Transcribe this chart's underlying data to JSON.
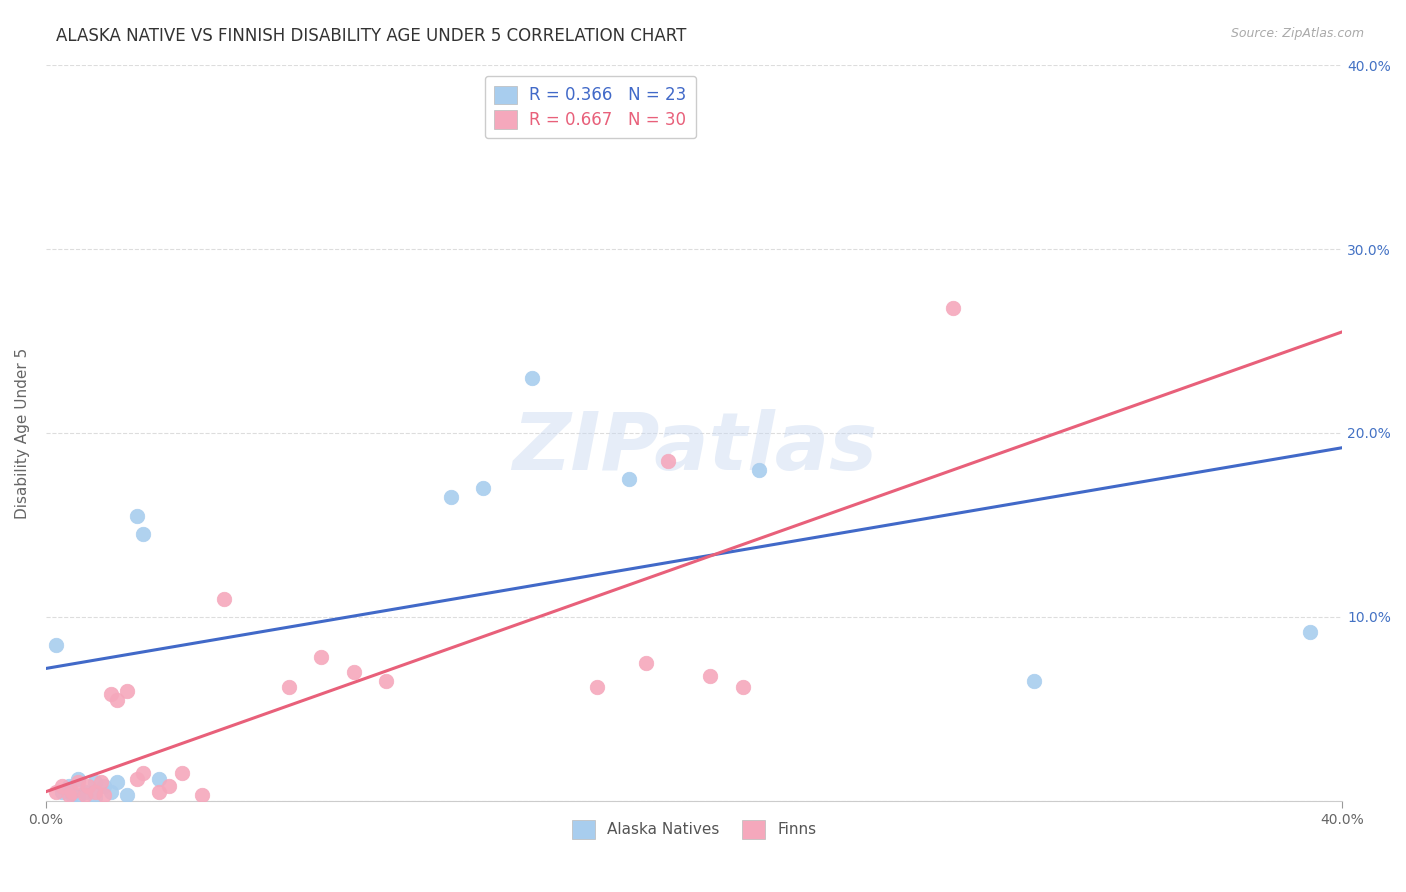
{
  "title": "ALASKA NATIVE VS FINNISH DISABILITY AGE UNDER 5 CORRELATION CHART",
  "source": "Source: ZipAtlas.com",
  "ylabel": "Disability Age Under 5",
  "watermark": "ZIPatlas",
  "legend_r_alaska": "R = 0.366",
  "legend_n_alaska": "N = 23",
  "legend_r_finn": "R = 0.667",
  "legend_n_finn": "N = 30",
  "legend_label_alaska": "Alaska Natives",
  "legend_label_finn": "Finns",
  "xmin": 0.0,
  "xmax": 0.4,
  "ymin": 0.0,
  "ymax": 0.4,
  "y_ticks": [
    0.0,
    0.1,
    0.2,
    0.3,
    0.4
  ],
  "y_tick_labels_right": [
    "",
    "10.0%",
    "20.0%",
    "30.0%",
    "40.0%"
  ],
  "alaska_color": "#A8CDEE",
  "alaska_edge": "#A8CDEE",
  "finn_color": "#F5A8BC",
  "finn_edge": "#F5A8BC",
  "line_alaska_color": "#4169C8",
  "line_finn_color": "#E8607A",
  "alaska_line_x": [
    0.0,
    0.4
  ],
  "alaska_line_y": [
    0.072,
    0.192
  ],
  "finn_line_x": [
    0.0,
    0.4
  ],
  "finn_line_y": [
    0.005,
    0.255
  ],
  "alaska_points": [
    [
      0.003,
      0.085
    ],
    [
      0.005,
      0.005
    ],
    [
      0.007,
      0.008
    ],
    [
      0.008,
      0.003
    ],
    [
      0.01,
      0.012
    ],
    [
      0.01,
      0.002
    ],
    [
      0.012,
      0.005
    ],
    [
      0.015,
      0.01
    ],
    [
      0.015,
      0.002
    ],
    [
      0.018,
      0.008
    ],
    [
      0.02,
      0.005
    ],
    [
      0.022,
      0.01
    ],
    [
      0.025,
      0.003
    ],
    [
      0.028,
      0.155
    ],
    [
      0.03,
      0.145
    ],
    [
      0.035,
      0.012
    ],
    [
      0.125,
      0.165
    ],
    [
      0.135,
      0.17
    ],
    [
      0.15,
      0.23
    ],
    [
      0.18,
      0.175
    ],
    [
      0.22,
      0.18
    ],
    [
      0.305,
      0.065
    ],
    [
      0.39,
      0.092
    ]
  ],
  "finn_points": [
    [
      0.003,
      0.005
    ],
    [
      0.005,
      0.008
    ],
    [
      0.007,
      0.003
    ],
    [
      0.008,
      0.005
    ],
    [
      0.01,
      0.01
    ],
    [
      0.012,
      0.003
    ],
    [
      0.013,
      0.008
    ],
    [
      0.015,
      0.005
    ],
    [
      0.017,
      0.01
    ],
    [
      0.018,
      0.003
    ],
    [
      0.02,
      0.058
    ],
    [
      0.022,
      0.055
    ],
    [
      0.025,
      0.06
    ],
    [
      0.028,
      0.012
    ],
    [
      0.03,
      0.015
    ],
    [
      0.035,
      0.005
    ],
    [
      0.038,
      0.008
    ],
    [
      0.042,
      0.015
    ],
    [
      0.048,
      0.003
    ],
    [
      0.055,
      0.11
    ],
    [
      0.075,
      0.062
    ],
    [
      0.085,
      0.078
    ],
    [
      0.095,
      0.07
    ],
    [
      0.105,
      0.065
    ],
    [
      0.17,
      0.062
    ],
    [
      0.185,
      0.075
    ],
    [
      0.192,
      0.185
    ],
    [
      0.205,
      0.068
    ],
    [
      0.215,
      0.062
    ],
    [
      0.28,
      0.268
    ]
  ],
  "grid_color": "#DDDDDD",
  "background_color": "#FFFFFF",
  "title_fontsize": 12,
  "axis_label_fontsize": 11,
  "tick_fontsize": 10,
  "legend_fontsize": 11
}
